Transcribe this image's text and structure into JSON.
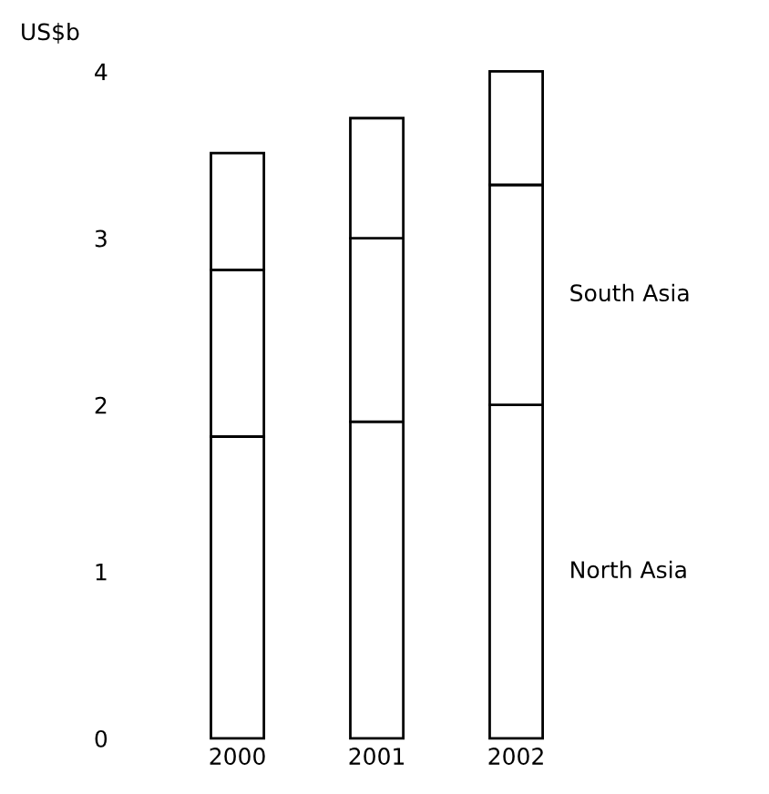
{
  "chart_data": {
    "type": "bar",
    "stacked": true,
    "ylabel": "US$b",
    "categories": [
      "2000",
      "2001",
      "2002"
    ],
    "series": [
      {
        "name": "North Asia",
        "color": "#ffffff",
        "values": [
          1.81,
          1.9,
          2.0
        ]
      },
      {
        "name": "South Asia",
        "color": "#ffffff",
        "values": [
          1.0,
          1.1,
          1.32
        ]
      },
      {
        "color": "#ffffff",
        "values": [
          0.7,
          0.72,
          0.68
        ]
      }
    ],
    "ylim": [
      0,
      4
    ],
    "yticks": [
      0,
      1,
      2,
      3,
      4
    ],
    "grid": false,
    "legend": false
  }
}
